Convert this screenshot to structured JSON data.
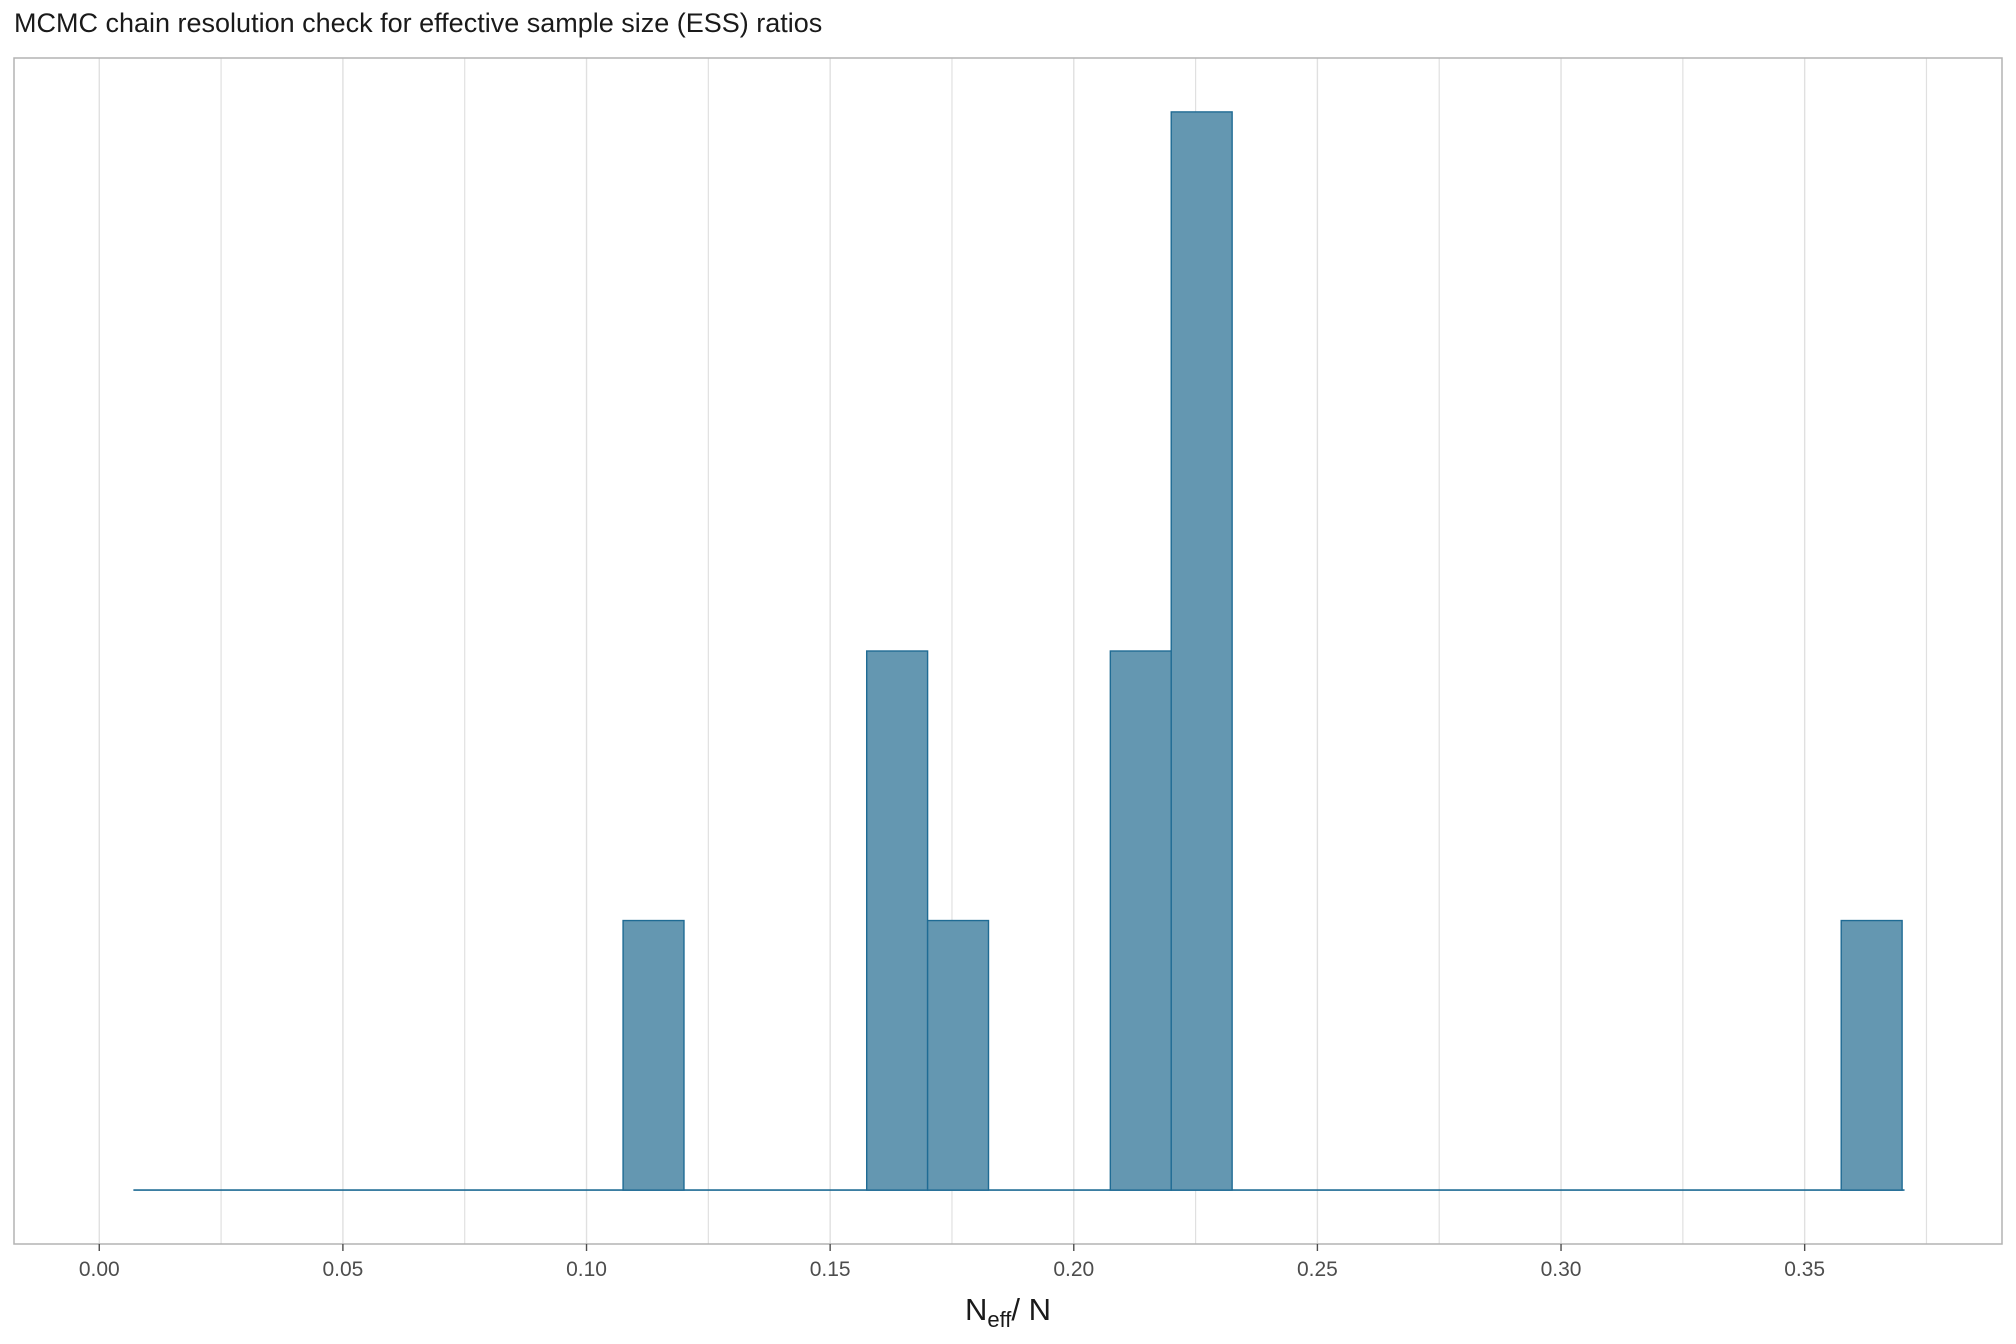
{
  "chart_data": {
    "type": "bar",
    "title": "MCMC chain resolution check for effective sample size (ESS) ratios",
    "xlabel": {
      "main": "N",
      "sub": "eff",
      "rest": "/ N"
    },
    "ylabel": "",
    "xlim": [
      -0.0175,
      0.3905
    ],
    "ylim": [
      -0.2,
      4.2
    ],
    "x_ticks": [
      {
        "value": 0.0,
        "label": "0.00"
      },
      {
        "value": 0.05,
        "label": "0.05"
      },
      {
        "value": 0.1,
        "label": "0.10"
      },
      {
        "value": 0.15,
        "label": "0.15"
      },
      {
        "value": 0.2,
        "label": "0.20"
      },
      {
        "value": 0.25,
        "label": "0.25"
      },
      {
        "value": 0.3,
        "label": "0.30"
      },
      {
        "value": 0.35,
        "label": "0.35"
      }
    ],
    "x_minor_gridlines": [
      0.025,
      0.075,
      0.125,
      0.175,
      0.225,
      0.275,
      0.325,
      0.375
    ],
    "bin_width": 0.0125,
    "baseline_range": [
      0.007,
      0.3705
    ],
    "bins": [
      {
        "x0": 0.1075,
        "x1": 0.12,
        "count": 1
      },
      {
        "x0": 0.1575,
        "x1": 0.17,
        "count": 2
      },
      {
        "x0": 0.17,
        "x1": 0.1825,
        "count": 1
      },
      {
        "x0": 0.2075,
        "x1": 0.22,
        "count": 2
      },
      {
        "x0": 0.22,
        "x1": 0.2325,
        "count": 4
      },
      {
        "x0": 0.3575,
        "x1": 0.37,
        "count": 1
      }
    ],
    "grid": "vertical",
    "y_axis_labels": false,
    "colors": {
      "bar_fill": "#6497b1",
      "bar_stroke": "#1f6b94",
      "grid": "#e0e0e0",
      "panel_border": "#b3b3b3"
    }
  }
}
